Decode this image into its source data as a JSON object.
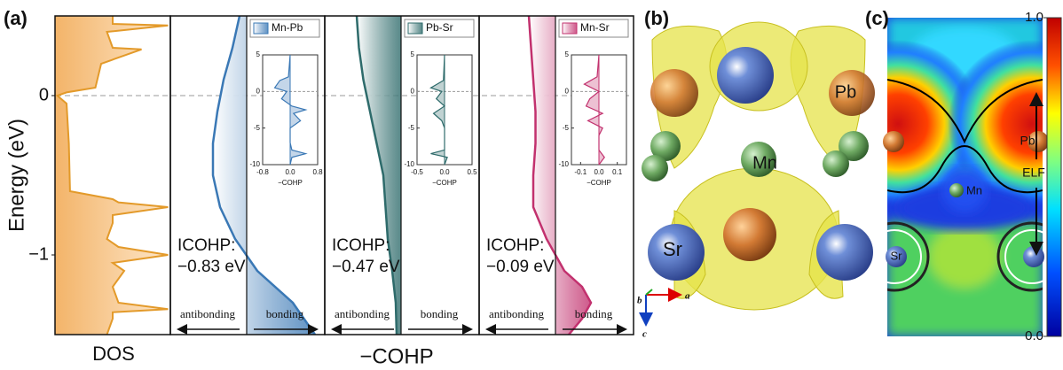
{
  "panel_a": {
    "label": "(a)",
    "ylabel": "Energy (eV)",
    "ylim": [
      -1.5,
      0.5
    ],
    "yticks": [
      0,
      {
        "value": -1,
        "label": "−1"
      }
    ],
    "dos": {
      "xlabel": "DOS",
      "color": "#e39a2a",
      "energy": [
        0.5,
        0.45,
        0.44,
        0.4,
        0.3,
        0.29,
        0.2,
        0.05,
        0.02,
        0,
        -0.05,
        -0.3,
        -0.6,
        -0.65,
        -0.67,
        -0.7,
        -0.75,
        -0.8,
        -0.9,
        -0.95,
        -1.0,
        -1.05,
        -1.1,
        -1.2,
        -1.3,
        -1.34,
        -1.36,
        -1.4,
        -1.5
      ],
      "values": [
        0.5,
        0.5,
        0.98,
        0.45,
        0.5,
        0.75,
        0.4,
        0.35,
        0.1,
        0.02,
        0.1,
        0.12,
        0.13,
        0.5,
        0.55,
        0.98,
        0.5,
        0.5,
        0.45,
        0.55,
        0.98,
        0.5,
        0.6,
        0.5,
        0.55,
        0.98,
        0.5,
        0.5,
        0.45
      ]
    },
    "cohp_xlabel": "−COHP",
    "cohp": [
      {
        "name": "Mn-Pb",
        "color": "#3a78b5",
        "icohp": "ICOHP:",
        "icohp_value": "−0.83 eV",
        "left_label": "antibonding",
        "right_label": "bonding",
        "energy": [
          0.5,
          0.3,
          0.1,
          -0.1,
          -0.3,
          -0.5,
          -0.7,
          -0.9,
          -1.1,
          -1.3,
          -1.5
        ],
        "values": [
          -0.16,
          -0.32,
          -0.52,
          -0.66,
          -0.76,
          -0.76,
          -0.6,
          -0.26,
          0.24,
          1.04,
          1.54
        ],
        "inset": {
          "xlim": [
            -0.8,
            0.8
          ],
          "xticks": [
            -0.8,
            {
              "value": 0,
              "label": "0.0"
            },
            0.8
          ],
          "ylim": [
            -10,
            5
          ],
          "yticks": [
            5,
            0,
            -5,
            -10
          ],
          "xlabel": "−COHP",
          "energy": [
            5,
            2,
            1.5,
            0.5,
            0,
            -1,
            -2,
            -2.5,
            -3,
            -4,
            -5,
            -7,
            -8,
            -8.5,
            -9,
            -10
          ],
          "values": [
            0,
            -0.05,
            -0.3,
            -0.45,
            -0.1,
            -0.25,
            0.05,
            0.45,
            0.1,
            0.3,
            0,
            0,
            0.05,
            0.45,
            0.05,
            0
          ]
        }
      },
      {
        "name": "Pb-Sr",
        "color": "#2e6b6b",
        "icohp": "ICOHP:",
        "icohp_value": "−0.47 eV",
        "left_label": "antibonding",
        "right_label": "bonding",
        "energy": [
          0.5,
          0.3,
          0.1,
          -0.1,
          -0.3,
          -0.5,
          -0.7,
          -0.9,
          -1.1,
          -1.3,
          -1.5
        ],
        "values": [
          -1.0,
          -0.95,
          -0.85,
          -0.7,
          -0.55,
          -0.4,
          -0.35,
          -0.3,
          -0.2,
          -0.12,
          -0.1
        ],
        "inset": {
          "xlim": [
            -0.5,
            0.5
          ],
          "xticks": [
            -0.5,
            {
              "value": 0,
              "label": "0.0"
            },
            0.5
          ],
          "ylim": [
            -10,
            5
          ],
          "yticks": [
            5,
            0,
            -5,
            -10
          ],
          "xlabel": "−COHP",
          "energy": [
            5,
            1.5,
            0.5,
            0,
            -1,
            -2,
            -3,
            -4,
            -5,
            -8,
            -8.5,
            -9,
            -10
          ],
          "values": [
            0,
            -0.02,
            -0.25,
            -0.05,
            -0.15,
            0,
            -0.2,
            -0.05,
            0,
            0,
            -0.25,
            0.05,
            0
          ]
        }
      },
      {
        "name": "Mn-Sr",
        "color": "#c2316e",
        "icohp": "ICOHP:",
        "icohp_value": "−0.09 eV",
        "left_label": "antibonding",
        "right_label": "bonding",
        "energy": [
          0.5,
          0.3,
          0.1,
          -0.1,
          -0.3,
          -0.5,
          -0.7,
          -0.9,
          -1.1,
          -1.2,
          -1.3,
          -1.4,
          -1.5
        ],
        "values": [
          -0.6,
          -0.55,
          -0.5,
          -0.45,
          -0.45,
          -0.5,
          -0.5,
          -0.2,
          0.2,
          0.6,
          0.8,
          0.6,
          0.3
        ],
        "inset": {
          "xlim": [
            -0.15,
            0.15
          ],
          "xticks": [
            -0.1,
            {
              "value": 0,
              "label": "0.0"
            },
            0.1
          ],
          "ylim": [
            -10,
            5
          ],
          "yticks": [
            5,
            0,
            -5,
            -10
          ],
          "xlabel": "−COHP",
          "energy": [
            5,
            2,
            1,
            0,
            -1,
            -2,
            -3,
            -4,
            -5,
            -6,
            -8,
            -9,
            -10
          ],
          "values": [
            0,
            -0.01,
            -0.08,
            0,
            -0.05,
            -0.07,
            0.02,
            -0.06,
            0.02,
            0,
            0,
            0.03,
            0
          ]
        }
      }
    ]
  },
  "panel_b": {
    "label": "(b)",
    "atoms": [
      "Pb",
      "Mn",
      "Sr"
    ],
    "axes": [
      "a",
      "b",
      "c"
    ]
  },
  "panel_c": {
    "label": "(c)",
    "colorbar_label": "ELF",
    "clim": [
      0,
      1
    ],
    "colorbar_ticks": [
      {
        "value": 1,
        "label": "1.0"
      },
      {
        "value": 0,
        "label": "0.0"
      }
    ],
    "atoms": [
      "Pb",
      "Mn",
      "Sr"
    ]
  }
}
